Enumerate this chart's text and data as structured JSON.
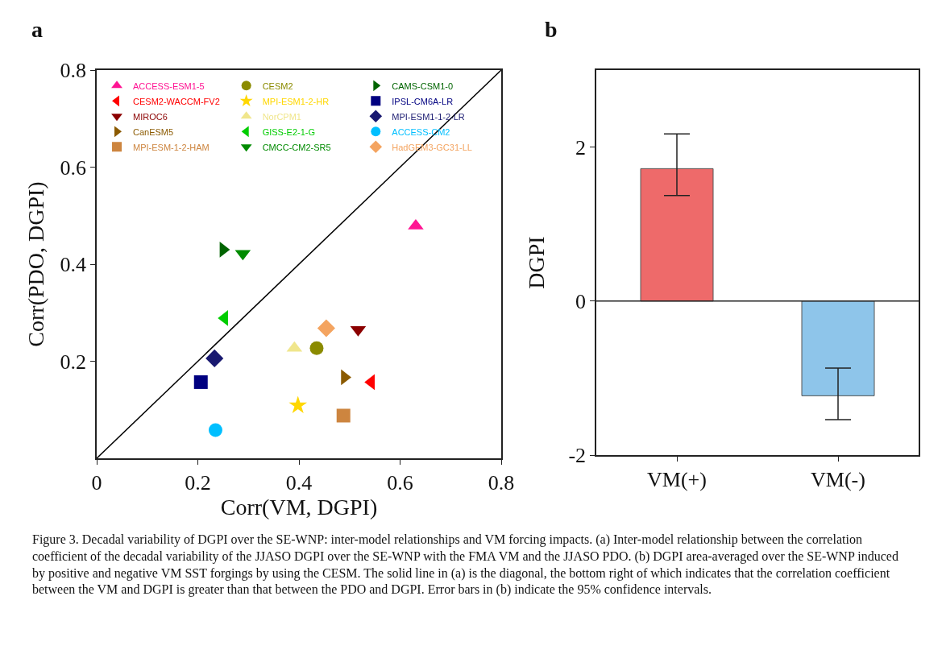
{
  "chart_data": [
    {
      "type": "scatter",
      "title": "a",
      "xlabel": "Corr(VM, DGPI)",
      "ylabel": "Corr(PDO, DGPI)",
      "xlim": [
        0,
        0.8
      ],
      "ylim": [
        0,
        0.8
      ],
      "xticks": [
        0,
        0.2,
        0.4,
        0.6,
        0.8
      ],
      "yticks": [
        0.2,
        0.4,
        0.6,
        0.8
      ],
      "grid": false,
      "legend": "top left",
      "series": [
        {
          "name": "ACCESS-ESM1-5",
          "color": "#ff1493",
          "marker": "triangle-up",
          "x": [
            0.631
          ],
          "values": [
            0.479
          ]
        },
        {
          "name": "CESM2",
          "color": "#8b8b00",
          "marker": "circle",
          "x": [
            0.435
          ],
          "values": [
            0.227
          ]
        },
        {
          "name": "CAMS-CSM1-0",
          "color": "#006400",
          "marker": "triangle-right",
          "x": [
            0.25
          ],
          "values": [
            0.43
          ]
        },
        {
          "name": "CESM2-WACCM-FV2",
          "color": "#ff0000",
          "marker": "triangle-left",
          "x": [
            0.543
          ],
          "values": [
            0.157
          ]
        },
        {
          "name": "MPI-ESM1-2-HR",
          "color": "#ffd700",
          "marker": "star",
          "x": [
            0.398
          ],
          "values": [
            0.109
          ]
        },
        {
          "name": "IPSL-CM6A-LR",
          "color": "#000080",
          "marker": "square",
          "x": [
            0.206
          ],
          "values": [
            0.157
          ]
        },
        {
          "name": "MIROC6",
          "color": "#8b0000",
          "marker": "triangle-down",
          "x": [
            0.517
          ],
          "values": [
            0.265
          ]
        },
        {
          "name": "NorCPM1",
          "color": "#f0e68c",
          "marker": "triangle-up",
          "x": [
            0.391
          ],
          "values": [
            0.227
          ]
        },
        {
          "name": "MPI-ESM1-1-2-LR",
          "color": "#191970",
          "marker": "diamond",
          "x": [
            0.233
          ],
          "values": [
            0.206
          ]
        },
        {
          "name": "CanESM5",
          "color": "#8b5a00",
          "marker": "triangle-right",
          "x": [
            0.49
          ],
          "values": [
            0.167
          ]
        },
        {
          "name": "GISS-E2-1-G",
          "color": "#00cd00",
          "marker": "triangle-left",
          "x": [
            0.253
          ],
          "values": [
            0.289
          ]
        },
        {
          "name": "ACCESS-CM2",
          "color": "#00bfff",
          "marker": "circle",
          "x": [
            0.235
          ],
          "values": [
            0.058
          ]
        },
        {
          "name": "MPI-ESM-1-2-HAM",
          "color": "#cd853f",
          "marker": "square",
          "x": [
            0.488
          ],
          "values": [
            0.088
          ]
        },
        {
          "name": "CMCC-CM2-SR5",
          "color": "#008b00",
          "marker": "triangle-down",
          "x": [
            0.289
          ],
          "values": [
            0.422
          ]
        },
        {
          "name": "HadGEM3-GC31-LL",
          "color": "#f4a460",
          "marker": "diamond",
          "x": [
            0.454
          ],
          "values": [
            0.268
          ]
        },
        {
          "type": "line",
          "color": "#000000",
          "x": [
            0,
            0.8
          ],
          "values": [
            0,
            0.8
          ]
        }
      ],
      "annotations": [
        "Figure 3. Decadal variability of DGPI over the SE-WNP: inter-model relationships and VM forcing impacts. (a) Inter-model relationship between the correlation coefficient of the decadal variability of the JJASO DGPI over the SE-WNP with the FMA VM and the JJASO PDO. (b) DGPI area-averaged over the SE-WNP induced by positive and negative VM SST forgings by using the CESM. The solid line in (a) is the diagonal, the bottom right of which indicates that the correlation coefficient between the VM and DGPI is greater than that between the PDO and DGPI. Error bars in (b) indicate the 95% confidence intervals."
      ]
    },
    {
      "type": "bar",
      "title": "b",
      "ylabel": "DGPI",
      "categories": [
        "VM(+)",
        "VM(-)"
      ],
      "values": [
        1.72,
        -1.23
      ],
      "colors": [
        "#ee6a6a",
        "#8ec5ea"
      ],
      "errors": [
        [
          1.37,
          2.17
        ],
        [
          -1.54,
          -0.87
        ]
      ],
      "ylim": [
        -2,
        3
      ],
      "yticks": [
        -2,
        0,
        2
      ],
      "ref_lines": [
        {
          "axis": "y",
          "value": 0
        }
      ],
      "grid": false,
      "legend": false
    }
  ]
}
